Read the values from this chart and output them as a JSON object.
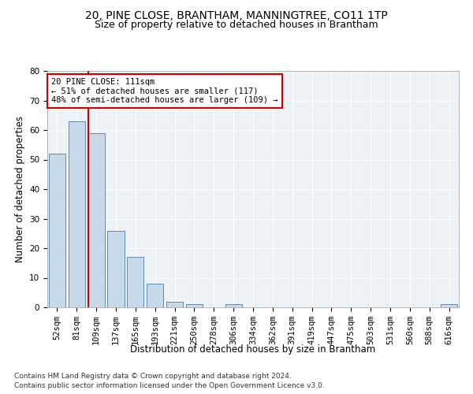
{
  "title1": "20, PINE CLOSE, BRANTHAM, MANNINGTREE, CO11 1TP",
  "title2": "Size of property relative to detached houses in Brantham",
  "xlabel": "Distribution of detached houses by size in Brantham",
  "ylabel": "Number of detached properties",
  "categories": [
    "52sqm",
    "81sqm",
    "109sqm",
    "137sqm",
    "165sqm",
    "193sqm",
    "221sqm",
    "250sqm",
    "278sqm",
    "306sqm",
    "334sqm",
    "362sqm",
    "391sqm",
    "419sqm",
    "447sqm",
    "475sqm",
    "503sqm",
    "531sqm",
    "560sqm",
    "588sqm",
    "616sqm"
  ],
  "values": [
    52,
    63,
    59,
    26,
    17,
    8,
    2,
    1,
    0,
    1,
    0,
    0,
    0,
    0,
    0,
    0,
    0,
    0,
    0,
    0,
    1
  ],
  "bar_color": "#c8d9ea",
  "bar_edge_color": "#5b8db8",
  "vline_color": "#cc0000",
  "vline_index": 2,
  "ylim": [
    0,
    80
  ],
  "yticks": [
    0,
    10,
    20,
    30,
    40,
    50,
    60,
    70,
    80
  ],
  "annotation_line1": "20 PINE CLOSE: 111sqm",
  "annotation_line2": "← 51% of detached houses are smaller (117)",
  "annotation_line3": "48% of semi-detached houses are larger (109) →",
  "annotation_box_color": "#ffffff",
  "annotation_box_edgecolor": "#cc0000",
  "footnote1": "Contains HM Land Registry data © Crown copyright and database right 2024.",
  "footnote2": "Contains public sector information licensed under the Open Government Licence v3.0.",
  "background_color": "#edf2f7",
  "grid_color": "#ffffff",
  "title1_fontsize": 10,
  "title2_fontsize": 9,
  "xlabel_fontsize": 8.5,
  "ylabel_fontsize": 8.5,
  "tick_fontsize": 7.5,
  "annotation_fontsize": 7.5,
  "footnote_fontsize": 6.5
}
